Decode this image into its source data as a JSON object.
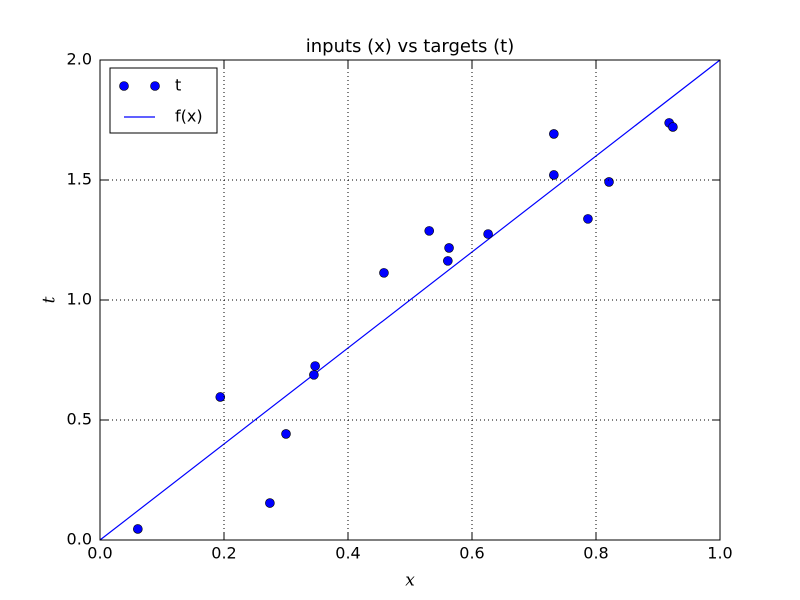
{
  "chart_data": {
    "type": "scatter",
    "title": "inputs (x) vs targets (t)",
    "xlabel": "x",
    "ylabel": "t",
    "series": [
      {
        "name": "t",
        "kind": "points",
        "color": "#0000ff",
        "x": [
          0.061,
          0.194,
          0.274,
          0.3,
          0.347,
          0.345,
          0.458,
          0.531,
          0.563,
          0.561,
          0.626,
          0.732,
          0.732,
          0.787,
          0.821,
          0.918,
          0.924
        ],
        "values": [
          0.046,
          0.596,
          0.154,
          0.442,
          0.725,
          0.688,
          1.113,
          1.288,
          1.217,
          1.163,
          1.275,
          1.692,
          1.521,
          1.338,
          1.492,
          1.738,
          1.721
        ]
      },
      {
        "name": "f(x)",
        "kind": "line",
        "color": "#0000ff",
        "x": [
          0,
          1
        ],
        "values": [
          0,
          2
        ]
      }
    ],
    "xlim": [
      0,
      1
    ],
    "ylim": [
      0,
      2
    ],
    "xticks": [
      {
        "value": 0,
        "label": "0.0"
      },
      0.2,
      0.4,
      0.6,
      0.8,
      {
        "value": 1,
        "label": "1.0"
      }
    ],
    "yticks": [
      {
        "value": 0,
        "label": "0.0"
      },
      0.5,
      {
        "value": 1,
        "label": "1.0"
      },
      1.5,
      {
        "value": 2,
        "label": "2.0"
      }
    ],
    "grid": true,
    "legend": "upper-left"
  }
}
